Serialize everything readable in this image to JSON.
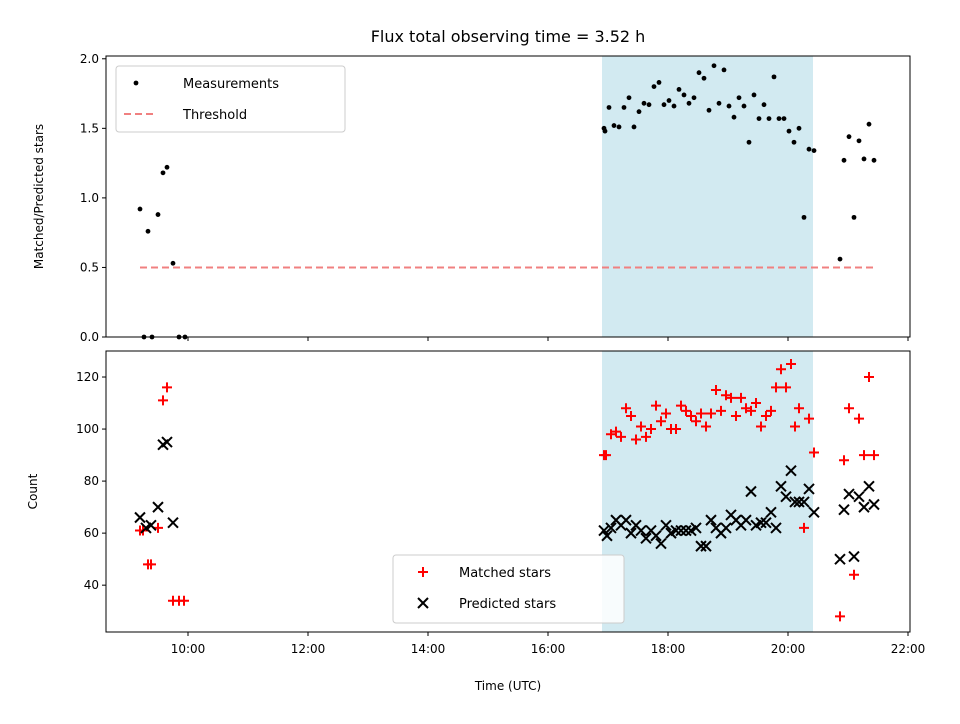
{
  "title": "Flux total observing time = 3.52 h",
  "colors": {
    "shade": "#add8e6",
    "threshold": "#f08080",
    "matched": "#ff0000",
    "predicted": "#000000",
    "measure": "#000000"
  },
  "chart_data": [
    {
      "type": "scatter",
      "ylabel": "Matched/Predicted stars",
      "ylim": [
        0,
        2.02
      ],
      "xlim": [
        "08:38",
        "22:02"
      ],
      "yticks": [
        0.0,
        0.5,
        1.0,
        1.5,
        2.0
      ],
      "yticklabels": [
        "0.0",
        "0.5",
        "1.0",
        "1.5",
        "2.0"
      ],
      "shaded_interval": [
        "16:54",
        "20:25"
      ],
      "legend_position": "upper left",
      "series": [
        {
          "name": "Measurements",
          "marker": "dot",
          "points": [
            [
              "09:12",
              0.92
            ],
            [
              "09:16",
              0.0
            ],
            [
              "09:20",
              0.76
            ],
            [
              "09:24",
              0.0
            ],
            [
              "09:30",
              0.88
            ],
            [
              "09:35",
              1.18
            ],
            [
              "09:39",
              1.22
            ],
            [
              "09:45",
              0.53
            ],
            [
              "09:51",
              0.0
            ],
            [
              "09:57",
              0.0
            ],
            [
              "16:56",
              1.5
            ],
            [
              "16:57",
              1.48
            ],
            [
              "17:01",
              1.65
            ],
            [
              "17:06",
              1.52
            ],
            [
              "17:11",
              1.51
            ],
            [
              "17:16",
              1.65
            ],
            [
              "17:21",
              1.72
            ],
            [
              "17:26",
              1.51
            ],
            [
              "17:31",
              1.62
            ],
            [
              "17:36",
              1.68
            ],
            [
              "17:41",
              1.67
            ],
            [
              "17:46",
              1.8
            ],
            [
              "17:51",
              1.83
            ],
            [
              "17:56",
              1.67
            ],
            [
              "18:01",
              1.7
            ],
            [
              "18:06",
              1.66
            ],
            [
              "18:11",
              1.78
            ],
            [
              "18:16",
              1.74
            ],
            [
              "18:21",
              1.68
            ],
            [
              "18:26",
              1.72
            ],
            [
              "18:31",
              1.9
            ],
            [
              "18:36",
              1.86
            ],
            [
              "18:41",
              1.63
            ],
            [
              "18:46",
              1.95
            ],
            [
              "18:51",
              1.68
            ],
            [
              "18:56",
              1.92
            ],
            [
              "19:01",
              1.66
            ],
            [
              "19:06",
              1.58
            ],
            [
              "19:11",
              1.72
            ],
            [
              "19:16",
              1.66
            ],
            [
              "19:21",
              1.4
            ],
            [
              "19:26",
              1.74
            ],
            [
              "19:31",
              1.57
            ],
            [
              "19:36",
              1.67
            ],
            [
              "19:41",
              1.57
            ],
            [
              "19:46",
              1.87
            ],
            [
              "19:51",
              1.57
            ],
            [
              "19:56",
              1.57
            ],
            [
              "20:01",
              1.48
            ],
            [
              "20:06",
              1.4
            ],
            [
              "20:11",
              1.5
            ],
            [
              "20:16",
              0.86
            ],
            [
              "20:21",
              1.35
            ],
            [
              "20:26",
              1.34
            ],
            [
              "20:52",
              0.56
            ],
            [
              "20:56",
              1.27
            ],
            [
              "21:01",
              1.44
            ],
            [
              "21:06",
              0.86
            ],
            [
              "21:11",
              1.41
            ],
            [
              "21:16",
              1.28
            ],
            [
              "21:21",
              1.53
            ],
            [
              "21:26",
              1.27
            ]
          ]
        },
        {
          "name": "Threshold",
          "marker": "dashed-line",
          "points": [
            [
              "09:12",
              0.5
            ],
            [
              "21:28",
              0.5
            ]
          ]
        }
      ]
    },
    {
      "type": "scatter",
      "xlabel": "Time (UTC)",
      "ylabel": "Count",
      "ylim": [
        22,
        130
      ],
      "xlim": [
        "08:38",
        "22:02"
      ],
      "yticks": [
        40,
        60,
        80,
        100,
        120
      ],
      "yticklabels": [
        "40",
        "60",
        "80",
        "100",
        "120"
      ],
      "xticks": [
        "10:00",
        "12:00",
        "14:00",
        "16:00",
        "18:00",
        "20:00",
        "22:00"
      ],
      "shaded_interval": [
        "16:54",
        "20:25"
      ],
      "legend_position": "lower center",
      "series": [
        {
          "name": "Matched stars",
          "marker": "plus",
          "points": [
            [
              "09:12",
              61
            ],
            [
              "09:15",
              61
            ],
            [
              "09:20",
              48
            ],
            [
              "09:23",
              48
            ],
            [
              "09:30",
              62
            ],
            [
              "09:35",
              111
            ],
            [
              "09:39",
              116
            ],
            [
              "09:45",
              34
            ],
            [
              "09:51",
              34
            ],
            [
              "09:56",
              34
            ],
            [
              "16:56",
              90
            ],
            [
              "16:58",
              90
            ],
            [
              "17:03",
              98
            ],
            [
              "17:08",
              99
            ],
            [
              "17:13",
              97
            ],
            [
              "17:18",
              108
            ],
            [
              "17:23",
              105
            ],
            [
              "17:28",
              96
            ],
            [
              "17:33",
              101
            ],
            [
              "17:38",
              97
            ],
            [
              "17:43",
              100
            ],
            [
              "17:48",
              109
            ],
            [
              "17:53",
              103
            ],
            [
              "17:58",
              106
            ],
            [
              "18:03",
              100
            ],
            [
              "18:08",
              100
            ],
            [
              "18:13",
              109
            ],
            [
              "18:18",
              107
            ],
            [
              "18:23",
              105
            ],
            [
              "18:28",
              103
            ],
            [
              "18:33",
              106
            ],
            [
              "18:38",
              101
            ],
            [
              "18:43",
              106
            ],
            [
              "18:48",
              115
            ],
            [
              "18:53",
              107
            ],
            [
              "18:58",
              113
            ],
            [
              "19:03",
              112
            ],
            [
              "19:08",
              105
            ],
            [
              "19:13",
              112
            ],
            [
              "19:18",
              108
            ],
            [
              "19:23",
              107
            ],
            [
              "19:28",
              110
            ],
            [
              "19:33",
              101
            ],
            [
              "19:38",
              105
            ],
            [
              "19:43",
              107
            ],
            [
              "19:48",
              116
            ],
            [
              "19:53",
              123
            ],
            [
              "19:58",
              116
            ],
            [
              "20:03",
              125
            ],
            [
              "20:07",
              101
            ],
            [
              "20:11",
              108
            ],
            [
              "20:16",
              62
            ],
            [
              "20:21",
              104
            ],
            [
              "20:26",
              91
            ],
            [
              "20:52",
              28
            ],
            [
              "20:56",
              88
            ],
            [
              "21:01",
              108
            ],
            [
              "21:06",
              44
            ],
            [
              "21:11",
              104
            ],
            [
              "21:16",
              90
            ],
            [
              "21:21",
              120
            ],
            [
              "21:26",
              90
            ]
          ]
        },
        {
          "name": "Predicted stars",
          "marker": "x",
          "points": [
            [
              "09:12",
              66
            ],
            [
              "09:18",
              62
            ],
            [
              "09:23",
              63
            ],
            [
              "09:30",
              70
            ],
            [
              "09:35",
              94
            ],
            [
              "09:39",
              95
            ],
            [
              "09:45",
              64
            ],
            [
              "16:56",
              61
            ],
            [
              "16:59",
              59
            ],
            [
              "17:03",
              62
            ],
            [
              "17:08",
              65
            ],
            [
              "17:13",
              63
            ],
            [
              "17:18",
              65
            ],
            [
              "17:23",
              60
            ],
            [
              "17:28",
              63
            ],
            [
              "17:33",
              61
            ],
            [
              "17:38",
              58
            ],
            [
              "17:43",
              61
            ],
            [
              "17:48",
              59
            ],
            [
              "17:53",
              56
            ],
            [
              "17:58",
              63
            ],
            [
              "18:03",
              60
            ],
            [
              "18:08",
              61
            ],
            [
              "18:13",
              61
            ],
            [
              "18:18",
              61
            ],
            [
              "18:23",
              61
            ],
            [
              "18:28",
              62
            ],
            [
              "18:33",
              55
            ],
            [
              "18:38",
              55
            ],
            [
              "18:43",
              65
            ],
            [
              "18:48",
              62
            ],
            [
              "18:53",
              60
            ],
            [
              "18:58",
              62
            ],
            [
              "19:03",
              67
            ],
            [
              "19:08",
              65
            ],
            [
              "19:13",
              63
            ],
            [
              "19:18",
              65
            ],
            [
              "19:23",
              76
            ],
            [
              "19:28",
              63
            ],
            [
              "19:33",
              64
            ],
            [
              "19:38",
              64
            ],
            [
              "19:43",
              68
            ],
            [
              "19:48",
              62
            ],
            [
              "19:53",
              78
            ],
            [
              "19:58",
              74
            ],
            [
              "20:03",
              84
            ],
            [
              "20:07",
              72
            ],
            [
              "20:11",
              72
            ],
            [
              "20:16",
              72
            ],
            [
              "20:21",
              77
            ],
            [
              "20:26",
              68
            ],
            [
              "20:52",
              50
            ],
            [
              "20:56",
              69
            ],
            [
              "21:01",
              75
            ],
            [
              "21:06",
              51
            ],
            [
              "21:11",
              74
            ],
            [
              "21:16",
              70
            ],
            [
              "21:21",
              78
            ],
            [
              "21:26",
              71
            ]
          ]
        }
      ]
    }
  ]
}
